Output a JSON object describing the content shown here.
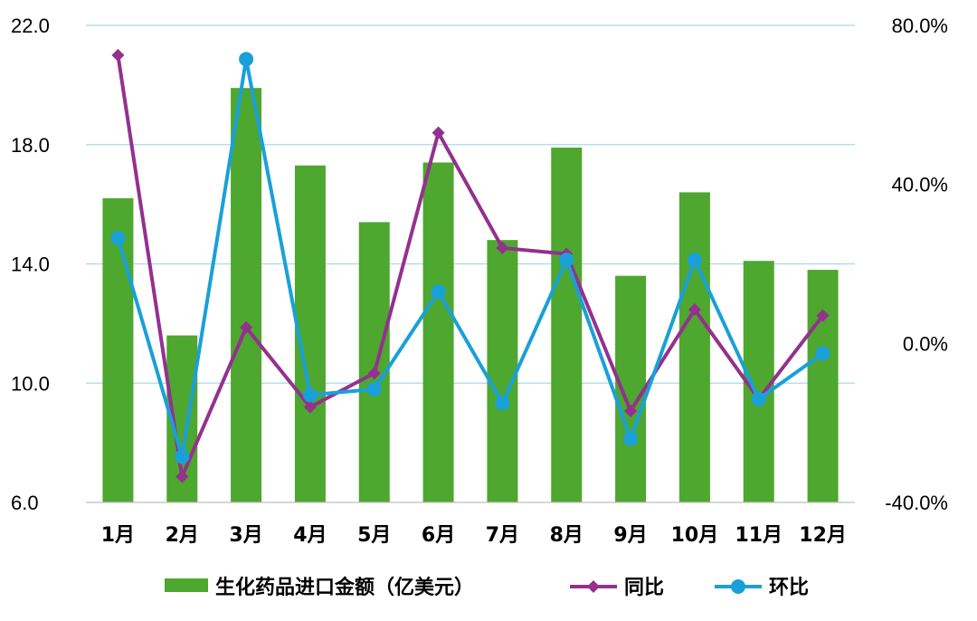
{
  "chart_data": {
    "type": "bar",
    "categories": [
      "1月",
      "2月",
      "3月",
      "4月",
      "5月",
      "6月",
      "7月",
      "8月",
      "9月",
      "10月",
      "11月",
      "12月"
    ],
    "series": [
      {
        "name": "生化药品进口金额（亿美元）",
        "type": "bar",
        "axis": "left",
        "color": "#4ea72e",
        "values": [
          16.2,
          11.6,
          19.9,
          17.3,
          15.4,
          17.4,
          14.8,
          17.9,
          13.6,
          16.4,
          14.1,
          13.8
        ]
      },
      {
        "name": "同比",
        "type": "line",
        "axis": "right",
        "marker": "diamond",
        "color": "#93318f",
        "values": [
          72.5,
          -33.5,
          4.0,
          -16.0,
          -7.5,
          53.0,
          24.0,
          22.5,
          -17.0,
          8.5,
          -14.0,
          7.0
        ]
      },
      {
        "name": "环比",
        "type": "line",
        "axis": "right",
        "marker": "circle",
        "color": "#1aa0d8",
        "values": [
          26.5,
          -28.5,
          71.5,
          -13.0,
          -11.5,
          13.0,
          -15.0,
          21.0,
          -24.0,
          21.0,
          -14.0,
          -2.5
        ]
      }
    ],
    "y_left": {
      "range": [
        6.0,
        22.0
      ],
      "ticks": [
        6.0,
        10.0,
        14.0,
        18.0,
        22.0
      ],
      "tick_labels": [
        "6.0",
        "10.0",
        "14.0",
        "18.0",
        "22.0"
      ]
    },
    "y_right": {
      "range": [
        -40.0,
        80.0
      ],
      "ticks": [
        -40.0,
        0.0,
        40.0,
        80.0
      ],
      "tick_labels": [
        "-40.0%",
        "0.0%",
        "40.0%",
        "80.0%"
      ]
    },
    "grid": true,
    "gridline_color": "#a8d8ec",
    "legend_position": "bottom"
  }
}
